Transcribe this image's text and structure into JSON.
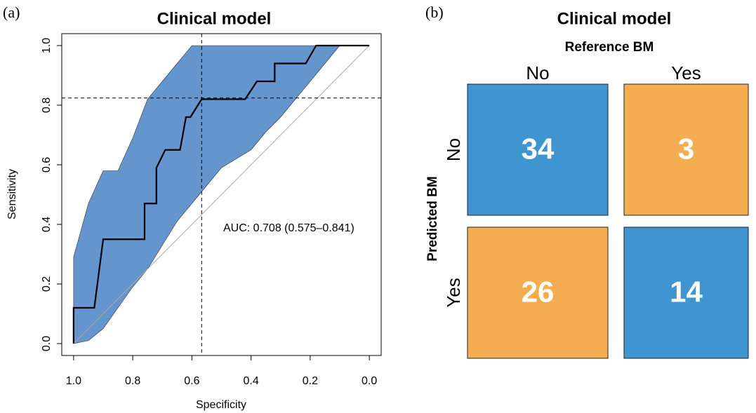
{
  "chart_data": [
    {
      "type": "roc",
      "panel_label": "(a)",
      "title": "Clinical model",
      "x_label": "Specificity",
      "y_label": "Sensitivity",
      "annotation": "AUC: 0.708 (0.575–0.841)",
      "x": [
        1.0,
        1.0,
        0.93,
        0.9,
        0.76,
        0.76,
        0.72,
        0.72,
        0.69,
        0.64,
        0.62,
        0.605,
        0.567,
        0.42,
        0.38,
        0.32,
        0.32,
        0.215,
        0.18,
        0.0
      ],
      "values": [
        0.0,
        0.12,
        0.12,
        0.35,
        0.35,
        0.47,
        0.47,
        0.59,
        0.65,
        0.65,
        0.76,
        0.76,
        0.82,
        0.82,
        0.88,
        0.88,
        0.94,
        0.94,
        1.0,
        1.0
      ],
      "color": "#000000",
      "ci": {
        "x": [
          1.0,
          0.95,
          0.9,
          0.85,
          0.8,
          0.75,
          0.7,
          0.65,
          0.6,
          0.55,
          0.5,
          0.45,
          0.4,
          0.35,
          0.3,
          0.25,
          0.2,
          0.15,
          0.1,
          0.05,
          0.0
        ],
        "lower": [
          0.0,
          0.01,
          0.05,
          0.12,
          0.19,
          0.25,
          0.33,
          0.41,
          0.47,
          0.53,
          0.59,
          0.62,
          0.65,
          0.71,
          0.76,
          0.82,
          0.88,
          0.94,
          1.0,
          1.0,
          1.0
        ],
        "upper": [
          0.29,
          0.47,
          0.58,
          0.58,
          0.69,
          0.82,
          0.88,
          0.94,
          1.0,
          1.0,
          1.0,
          1.0,
          1.0,
          1.0,
          1.0,
          1.0,
          1.0,
          1.0,
          1.0,
          1.0,
          1.0
        ],
        "color": "#6495cd"
      },
      "threshold": {
        "x": 0.567,
        "y": 0.824
      },
      "xlim": [
        1.04,
        -0.04
      ],
      "ylim": [
        -0.04,
        1.04
      ],
      "xticks": [
        {
          "value": 1,
          "label": "1.0"
        },
        0.8,
        0.6,
        0.4,
        0.2,
        {
          "value": 0,
          "label": "0.0"
        }
      ],
      "yticks": [
        {
          "value": 0,
          "label": "0.0"
        },
        0.2,
        0.4,
        0.6,
        0.8,
        {
          "value": 1,
          "label": "1.0"
        }
      ]
    },
    {
      "type": "heatmap",
      "panel_label": "(b)",
      "title": "Clinical model",
      "x_label": "Reference BM",
      "y_label": "Predicted BM",
      "x_categories": [
        "No",
        "Yes"
      ],
      "y_categories": [
        "No",
        "Yes"
      ],
      "values": [
        [
          34,
          3
        ],
        [
          26,
          14
        ]
      ],
      "colors": [
        [
          "#3e95d0",
          "#f5ad52"
        ],
        [
          "#f5ad52",
          "#3e95d0"
        ]
      ]
    }
  ]
}
